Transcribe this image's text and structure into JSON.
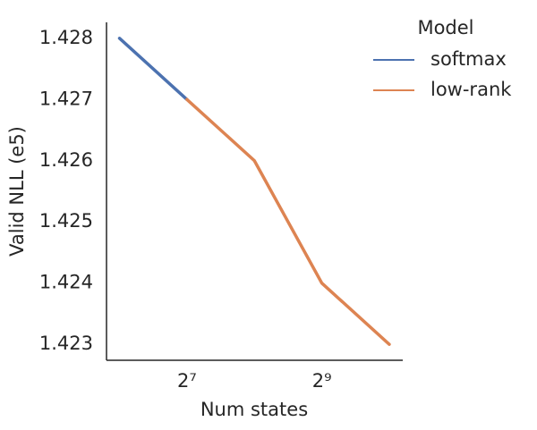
{
  "chart_data": {
    "type": "line",
    "xlabel": "Num states",
    "ylabel": "Valid NLL (e5)",
    "xscale": "log2",
    "xlim": [
      56,
      1176
    ],
    "xticks": [
      {
        "value": 128,
        "label": "2⁷"
      },
      {
        "value": 512,
        "label": "2⁹"
      }
    ],
    "ylim": [
      1.42274,
      1.42826
    ],
    "yticks": [
      1.423,
      1.424,
      1.425,
      1.426,
      1.427,
      1.428
    ],
    "grid": false,
    "legend": "upper right",
    "legend_title": "Model",
    "series": [
      {
        "name": "softmax",
        "color": "#4c72b0",
        "x": [
          64,
          128
        ],
        "values": [
          1.428,
          1.427
        ]
      },
      {
        "name": "low-rank",
        "color": "#dd8452",
        "x": [
          128,
          256,
          512,
          1024
        ],
        "values": [
          1.427,
          1.426,
          1.424,
          1.423
        ]
      }
    ]
  }
}
